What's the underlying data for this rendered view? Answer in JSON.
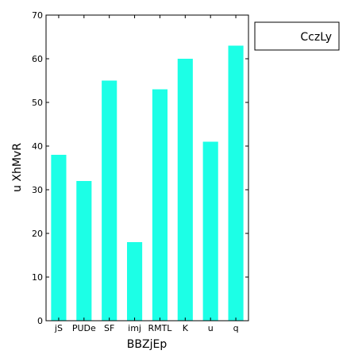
{
  "chart_data": {
    "type": "bar",
    "title": "",
    "xlabel": "BBZjEp",
    "ylabel": "u XhMvR",
    "categories": [
      "jS",
      "PUDe",
      "SF",
      "imj",
      "RMTL",
      "K",
      "u",
      "q"
    ],
    "series": [
      {
        "name": "CczLy",
        "values": [
          38,
          32,
          55,
          18,
          53,
          60,
          41,
          63
        ],
        "color": "#1cffe6"
      }
    ],
    "ylim": [
      0,
      70
    ],
    "yticks": [
      0,
      10,
      20,
      30,
      40,
      50,
      60,
      70
    ],
    "grid": false,
    "legend_position": "outside-top-right"
  }
}
